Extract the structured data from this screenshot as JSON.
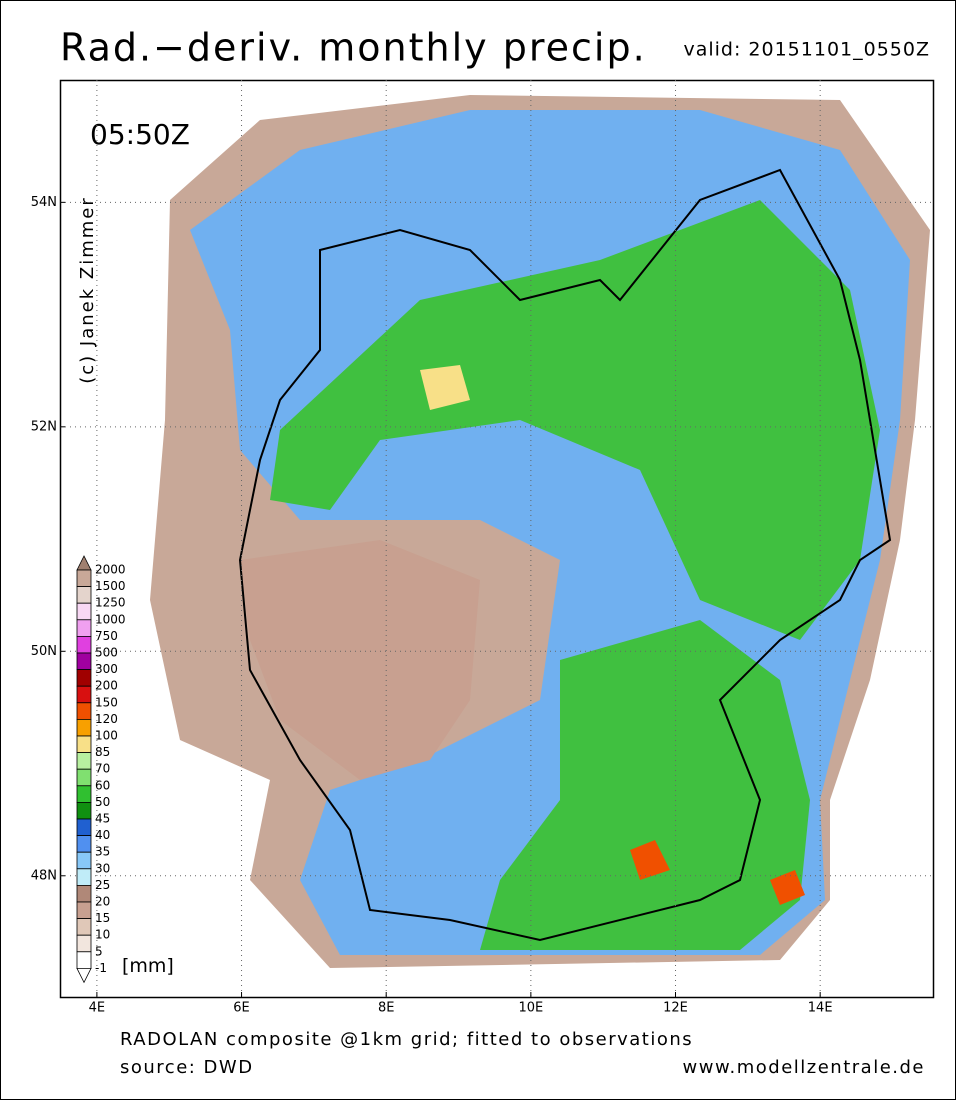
{
  "chart_data": {
    "type": "map",
    "title": "Rad.−deriv. monthly precip.",
    "valid": "valid: 20151101_0550Z",
    "time": "05:50Z",
    "copyright": "(c) Janek Zimmer",
    "xlim": [
      3.49,
      15.56
    ],
    "ylim": [
      46.92,
      55.09
    ],
    "xticks": [
      {
        "value": 4,
        "label": "4E"
      },
      {
        "value": 6,
        "label": "6E"
      },
      {
        "value": 8,
        "label": "8E"
      },
      {
        "value": 10,
        "label": "10E"
      },
      {
        "value": 12,
        "label": "12E"
      },
      {
        "value": 14,
        "label": "14E"
      }
    ],
    "yticks": [
      {
        "value": 48,
        "label": "48N"
      },
      {
        "value": 50,
        "label": "50N"
      },
      {
        "value": 52,
        "label": "52N"
      },
      {
        "value": 54,
        "label": "54N"
      }
    ],
    "grid": true,
    "legend": {
      "unit": "[mm]",
      "levels": [
        2000,
        1500,
        1250,
        1000,
        750,
        500,
        300,
        200,
        150,
        120,
        100,
        85,
        70,
        60,
        50,
        45,
        40,
        35,
        30,
        25,
        20,
        15,
        10,
        5,
        -1
      ],
      "colors": [
        "#a08070",
        "#c8a898",
        "#e4d4cc",
        "#f8d8f4",
        "#f0a0f0",
        "#e040e0",
        "#a000a0",
        "#a00000",
        "#d81010",
        "#f05000",
        "#f8a000",
        "#f8e088",
        "#b8f0a0",
        "#80e070",
        "#30c030",
        "#109010",
        "#2060d0",
        "#5090f0",
        "#88c8f8",
        "#c0ecf8",
        "#b08878",
        "#c8a090",
        "#e0c8b8",
        "#f2e6de",
        "#ffffff",
        "#ffffff"
      ]
    },
    "footer_line1": "RADOLAN composite @1km grid; fitted to observations",
    "footer_line2": "source: DWD",
    "footer_url": "www.modellzentrale.de"
  }
}
